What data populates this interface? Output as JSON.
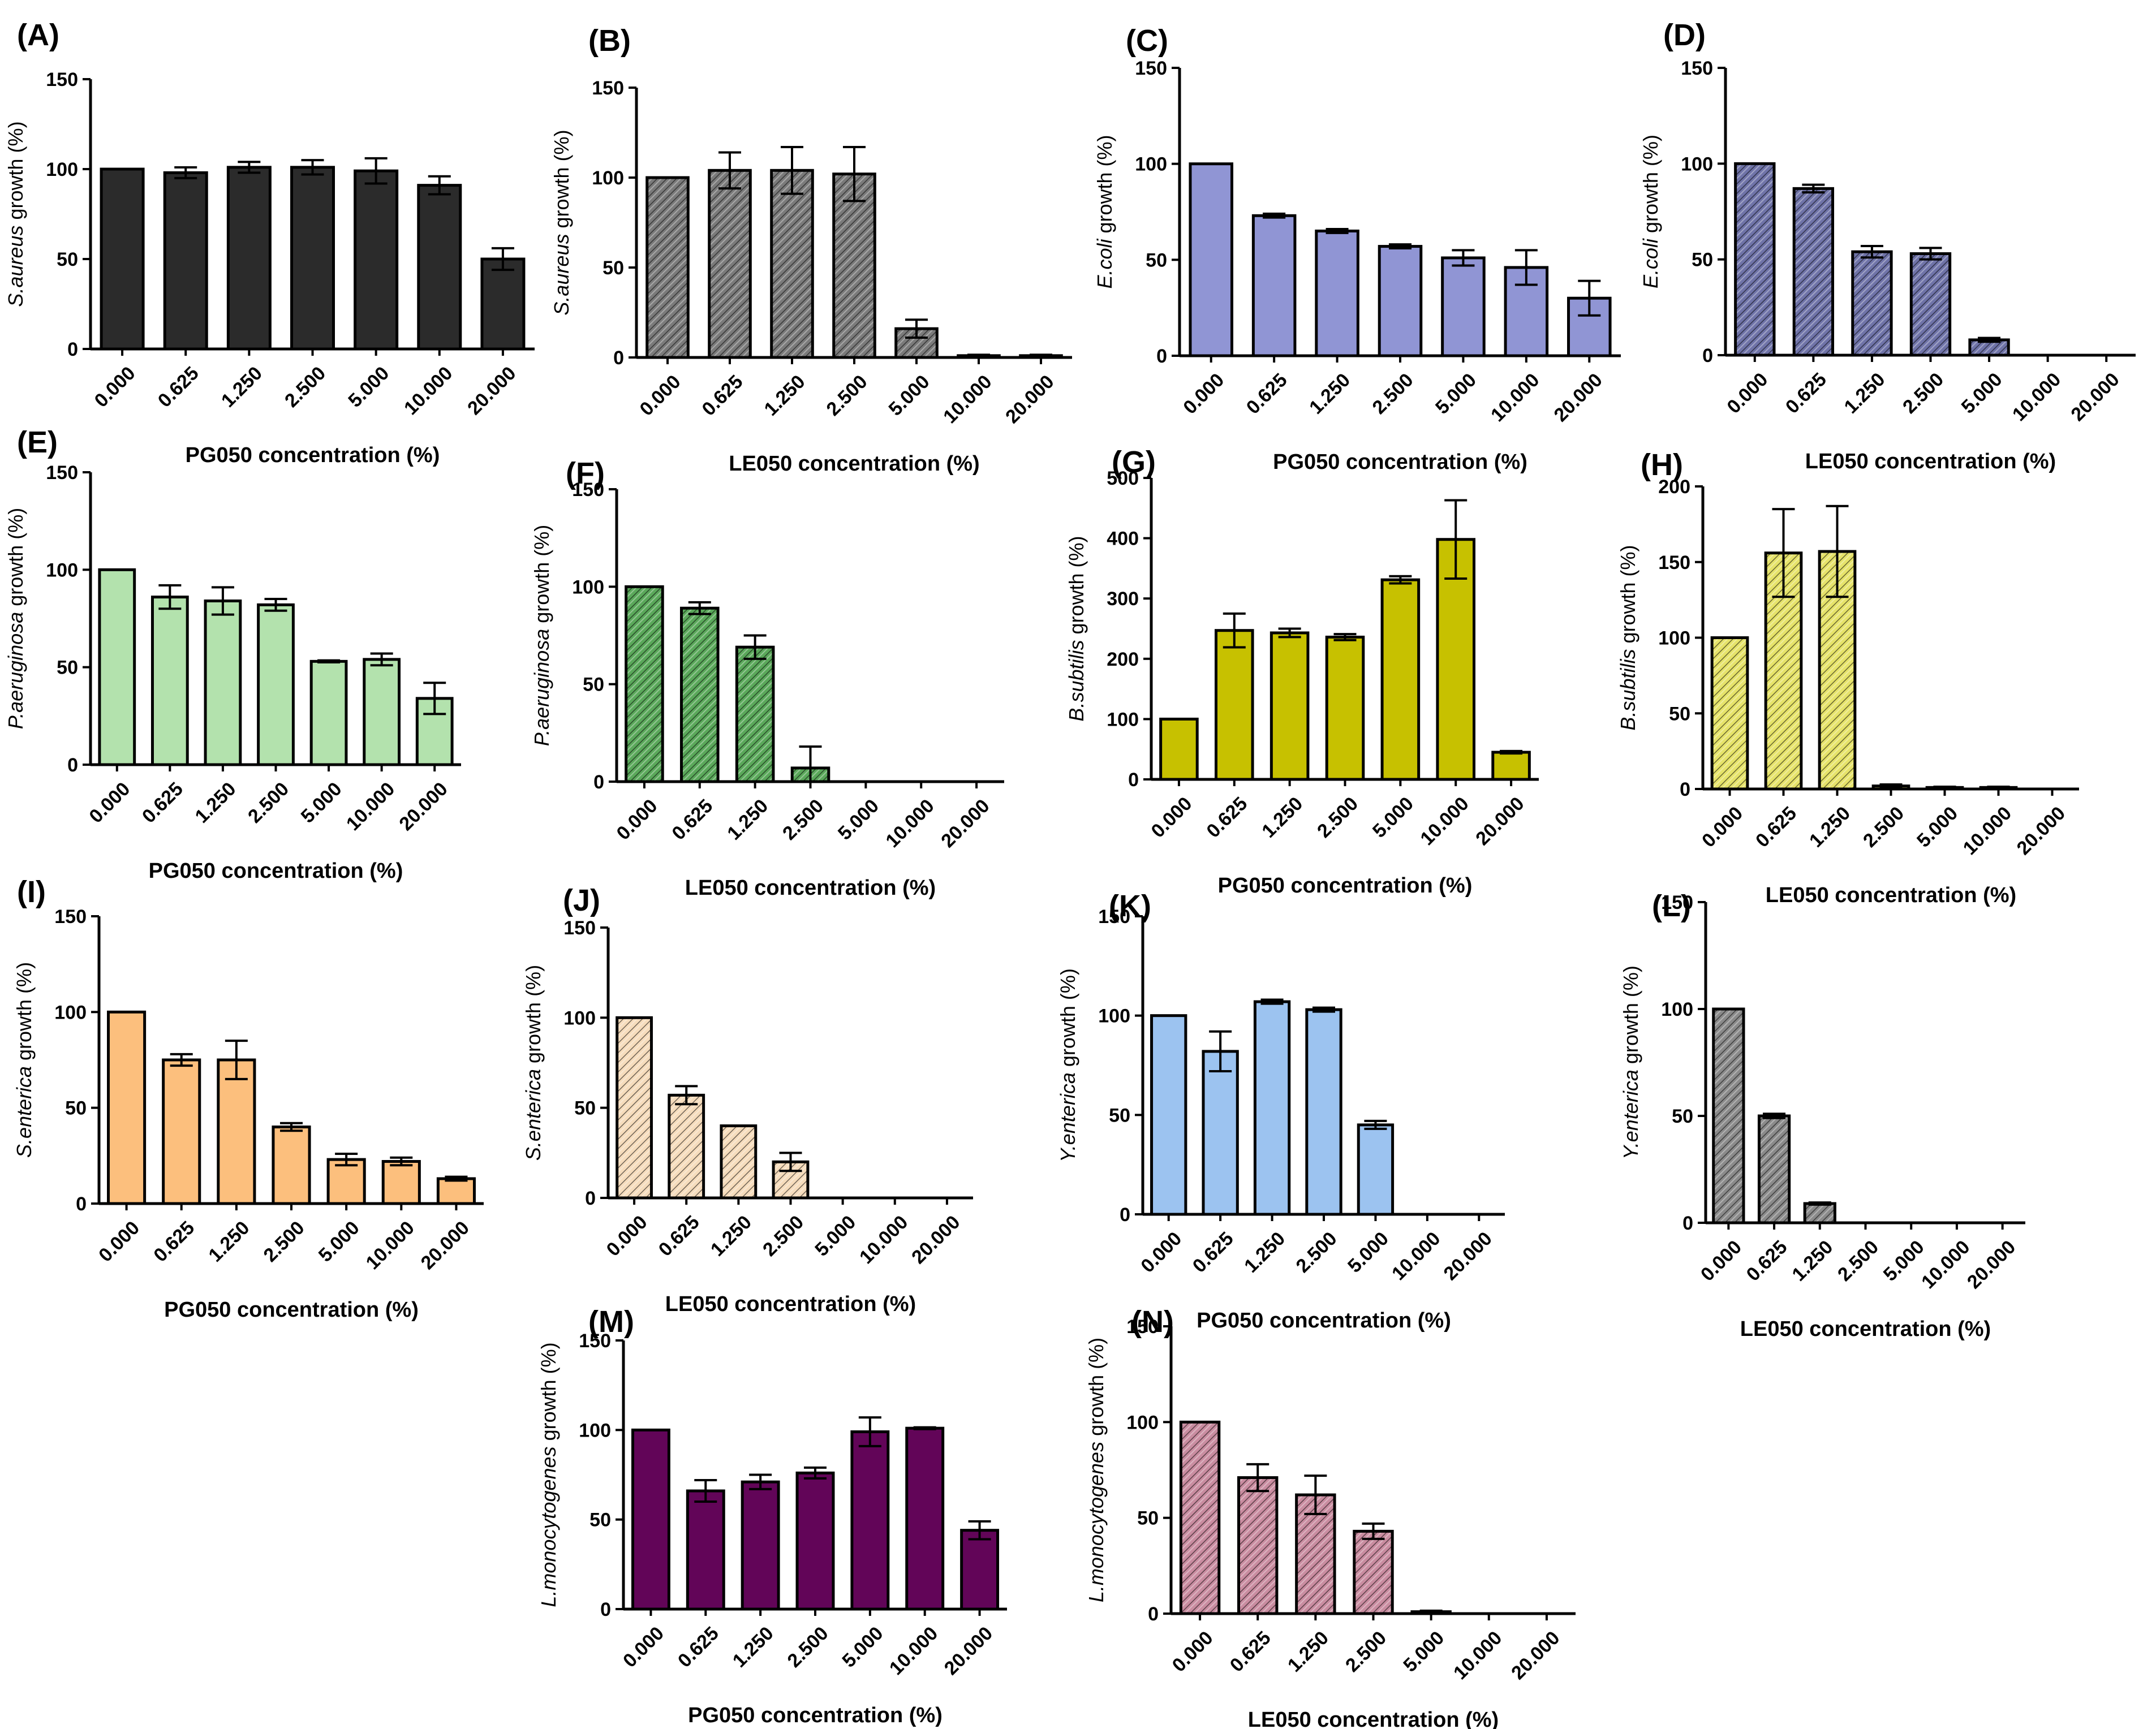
{
  "figure": {
    "categories": [
      "0.000",
      "0.625",
      "1.250",
      "2.500",
      "5.000",
      "10.000",
      "20.000"
    ],
    "growth_suffix": " growth (%)"
  },
  "chart_data": [
    {
      "id": "A",
      "label": "(A)",
      "type": "bar",
      "species": "S.aureus",
      "xlabel": "PG050 concentration (%)",
      "yticks": [
        "0",
        "50",
        "100",
        "150"
      ],
      "ylim": [
        0,
        150
      ],
      "color": "#2b2b2b",
      "pattern": "none",
      "values": [
        100,
        98,
        101,
        101,
        99,
        91,
        50
      ],
      "errors": [
        0,
        3,
        3,
        4,
        7,
        5,
        6
      ]
    },
    {
      "id": "B",
      "label": "(B)",
      "type": "bar",
      "species": "S.aureus",
      "xlabel": "LE050 concentration (%)",
      "yticks": [
        "0",
        "50",
        "100",
        "150"
      ],
      "ylim": [
        0,
        150
      ],
      "color": "#7a7a7a",
      "pattern": "hatch",
      "values": [
        100,
        104,
        104,
        102,
        16,
        1,
        1
      ],
      "errors": [
        0,
        10,
        13,
        15,
        5,
        0.5,
        0.5
      ]
    },
    {
      "id": "C",
      "label": "(C)",
      "type": "bar",
      "species": "E.coli",
      "xlabel": "PG050 concentration (%)",
      "yticks": [
        "0",
        "50",
        "100",
        "150"
      ],
      "ylim": [
        0,
        150
      ],
      "color": "#9095d4",
      "pattern": "none",
      "values": [
        100,
        73,
        65,
        57,
        51,
        46,
        30
      ],
      "errors": [
        0,
        1,
        1,
        1,
        4,
        9,
        9
      ]
    },
    {
      "id": "D",
      "label": "(D)",
      "type": "bar",
      "species": "E.coli",
      "xlabel": "LE050 concentration (%)",
      "yticks": [
        "0",
        "50",
        "100",
        "150"
      ],
      "ylim": [
        0,
        150
      ],
      "color": "#6f73a8",
      "pattern": "hatch",
      "values": [
        100,
        87,
        54,
        53,
        8,
        0,
        0
      ],
      "errors": [
        0,
        2,
        3,
        3,
        1,
        0,
        0
      ]
    },
    {
      "id": "E",
      "label": "(E)",
      "type": "bar",
      "species": "P.aeruginosa",
      "xlabel": "PG050 concentration (%)",
      "yticks": [
        "0",
        "50",
        "100",
        "150"
      ],
      "ylim": [
        0,
        150
      ],
      "color": "#b3e2ad",
      "pattern": "none",
      "values": [
        100,
        86,
        84,
        82,
        53,
        54,
        34
      ],
      "errors": [
        0,
        6,
        7,
        3,
        0.5,
        3,
        8
      ]
    },
    {
      "id": "F",
      "label": "(F)",
      "type": "bar",
      "species": "P.aeruginosa",
      "xlabel": "LE050 concentration (%)",
      "yticks": [
        "0",
        "50",
        "100",
        "150"
      ],
      "ylim": [
        0,
        150
      ],
      "color": "#5aa85a",
      "pattern": "hatch",
      "values": [
        100,
        89,
        69,
        7,
        0,
        0,
        0
      ],
      "errors": [
        0,
        3,
        6,
        11,
        0,
        0,
        0
      ]
    },
    {
      "id": "G",
      "label": "(G)",
      "type": "bar",
      "species": "B.subtilis",
      "xlabel": "PG050 concentration (%)",
      "yticks": [
        "0",
        "100",
        "200",
        "300",
        "400",
        "500"
      ],
      "ylim": [
        0,
        500
      ],
      "color": "#c7c100",
      "pattern": "none",
      "values": [
        100,
        247,
        243,
        236,
        331,
        398,
        45
      ],
      "errors": [
        0,
        28,
        7,
        5,
        6,
        65,
        2
      ]
    },
    {
      "id": "H",
      "label": "(H)",
      "type": "bar",
      "species": "B.subtilis",
      "xlabel": "LE050 concentration (%)",
      "yticks": [
        "0",
        "50",
        "100",
        "150",
        "200"
      ],
      "ylim": [
        0,
        200
      ],
      "color": "#e6e36a",
      "pattern": "hatch",
      "values": [
        100,
        156,
        157,
        2,
        1,
        1,
        0
      ],
      "errors": [
        0,
        29,
        30,
        1,
        0.5,
        0.5,
        0
      ]
    },
    {
      "id": "I",
      "label": "(I)",
      "type": "bar",
      "species": "S.enterica",
      "xlabel": "PG050 concentration (%)",
      "yticks": [
        "0",
        "50",
        "100",
        "150"
      ],
      "ylim": [
        0,
        150
      ],
      "color": "#fcbf7d",
      "pattern": "none",
      "values": [
        100,
        75,
        75,
        40,
        23,
        22,
        13
      ],
      "errors": [
        0,
        3,
        10,
        2,
        3,
        2,
        1
      ]
    },
    {
      "id": "J",
      "label": "(J)",
      "type": "bar",
      "species": "S.enterica",
      "xlabel": "LE050 concentration (%)",
      "yticks": [
        "0",
        "50",
        "100",
        "150"
      ],
      "ylim": [
        0,
        150
      ],
      "color": "#f6dcbc",
      "pattern": "hatch",
      "values": [
        100,
        57,
        40,
        20,
        0,
        0,
        0
      ],
      "errors": [
        0,
        5,
        0,
        5,
        0,
        0,
        0
      ]
    },
    {
      "id": "K",
      "label": "(K)",
      "type": "bar",
      "species": "Y.enterica",
      "xlabel": "PG050 concentration (%)",
      "yticks": [
        "0",
        "50",
        "100",
        "150"
      ],
      "ylim": [
        0,
        150
      ],
      "color": "#9cc3f0",
      "pattern": "none",
      "values": [
        100,
        82,
        107,
        103,
        45,
        0,
        0
      ],
      "errors": [
        0,
        10,
        1,
        1,
        2,
        0,
        0
      ]
    },
    {
      "id": "L",
      "label": "(L)",
      "type": "bar",
      "species": "Y.enterica",
      "xlabel": "LE050 concentration (%)",
      "yticks": [
        "0",
        "50",
        "100",
        "150"
      ],
      "ylim": [
        0,
        150
      ],
      "color": "#8a8a8a",
      "pattern": "hatch",
      "values": [
        100,
        50,
        9,
        0,
        0,
        0,
        0
      ],
      "errors": [
        0,
        1,
        0.5,
        0,
        0,
        0,
        0
      ]
    },
    {
      "id": "M",
      "label": "(M)",
      "type": "bar",
      "species": "L.monocytogenes",
      "xlabel": "PG050 concentration (%)",
      "yticks": [
        "0",
        "50",
        "100",
        "150"
      ],
      "ylim": [
        0,
        150
      ],
      "color": "#620558",
      "pattern": "none",
      "values": [
        100,
        66,
        71,
        76,
        99,
        101,
        44
      ],
      "errors": [
        0,
        6,
        4,
        3,
        8,
        0.5,
        5
      ]
    },
    {
      "id": "N",
      "label": "(N)",
      "type": "bar",
      "species": "L.monocytogenes",
      "xlabel": "LE050 concentration (%)",
      "yticks": [
        "0",
        "50",
        "100",
        "150"
      ],
      "ylim": [
        0,
        150
      ],
      "color": "#c98ca0",
      "pattern": "hatch",
      "values": [
        100,
        71,
        62,
        43,
        1,
        0,
        0
      ],
      "errors": [
        0,
        7,
        10,
        4,
        0.5,
        0,
        0
      ]
    }
  ]
}
